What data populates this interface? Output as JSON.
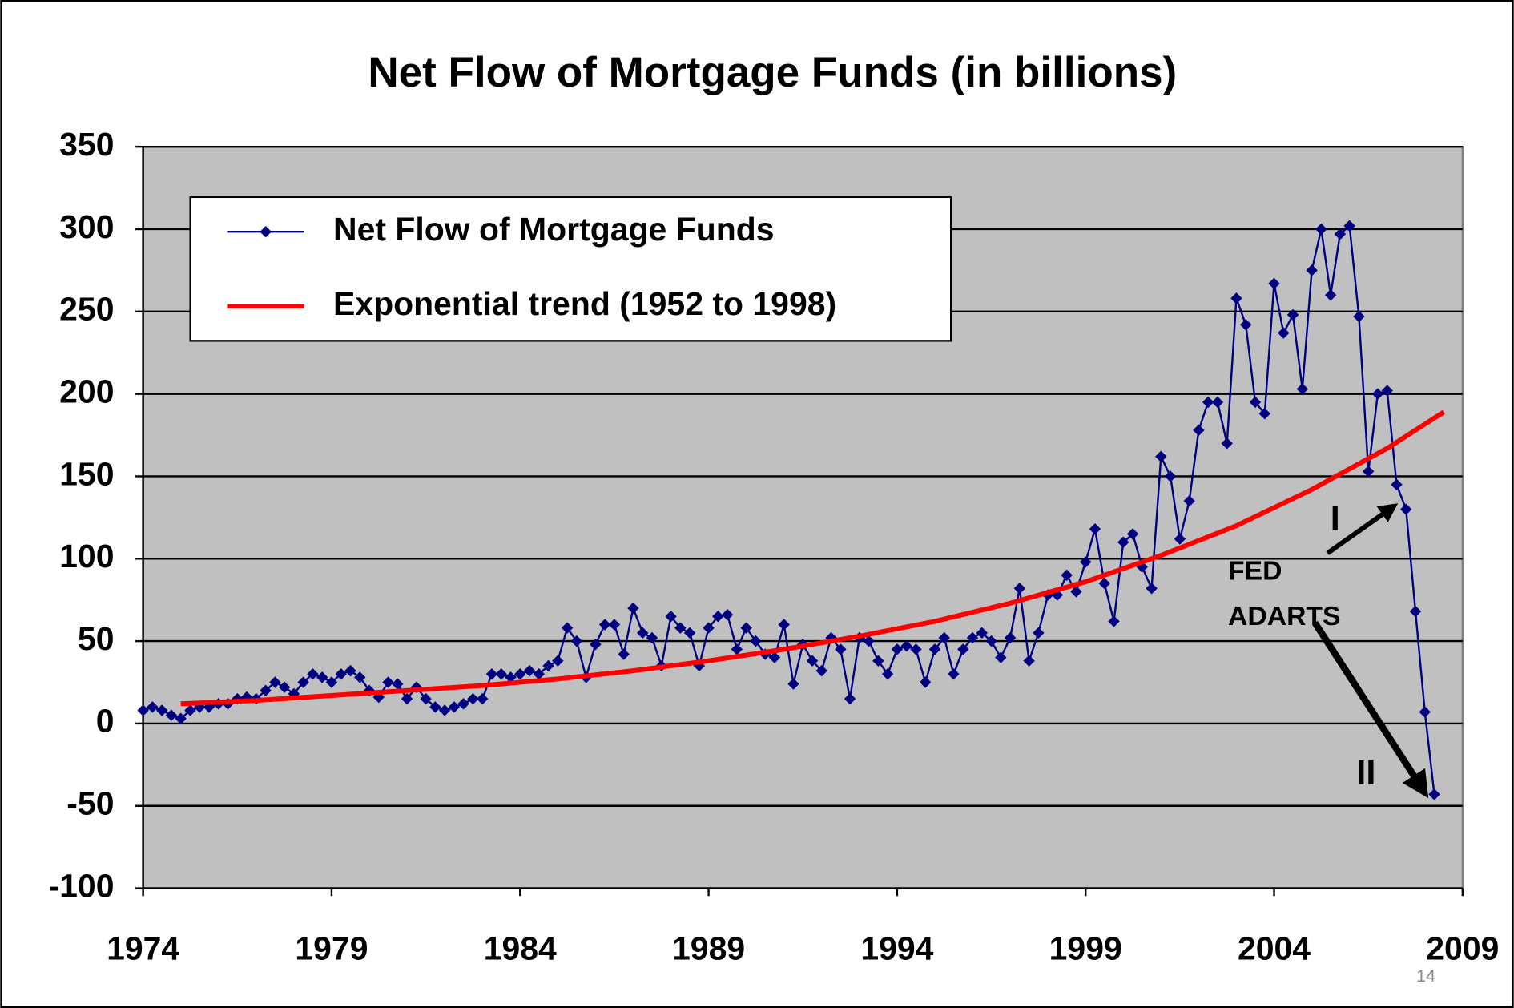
{
  "chart_data": {
    "type": "line",
    "title": "Net Flow of Mortgage Funds (in billions)",
    "xlim": [
      1974,
      2009
    ],
    "xticks": [
      1974,
      1979,
      1984,
      1989,
      1994,
      1999,
      2004,
      2009
    ],
    "ylim": [
      -100,
      350
    ],
    "yticks": [
      -100,
      -50,
      0,
      50,
      100,
      150,
      200,
      250,
      300,
      350
    ],
    "grid": true,
    "legend": "upper left",
    "series": [
      {
        "name": "Net Flow of Mortgage Funds",
        "color": "#000080",
        "marker": "diamond",
        "x": [
          1974,
          1974.25,
          1974.5,
          1974.75,
          1975,
          1975.25,
          1975.5,
          1975.75,
          1976,
          1976.25,
          1976.5,
          1976.75,
          1977,
          1977.25,
          1977.5,
          1977.75,
          1978,
          1978.25,
          1978.5,
          1978.75,
          1979,
          1979.25,
          1979.5,
          1979.75,
          1980,
          1980.25,
          1980.5,
          1980.75,
          1981,
          1981.25,
          1981.5,
          1981.75,
          1982,
          1982.25,
          1982.5,
          1982.75,
          1983,
          1983.25,
          1983.5,
          1983.75,
          1984,
          1984.25,
          1984.5,
          1984.75,
          1985,
          1985.25,
          1985.5,
          1985.75,
          1986,
          1986.25,
          1986.5,
          1986.75,
          1987,
          1987.25,
          1987.5,
          1987.75,
          1988,
          1988.25,
          1988.5,
          1988.75,
          1989,
          1989.25,
          1989.5,
          1989.75,
          1990,
          1990.25,
          1990.5,
          1990.75,
          1991,
          1991.25,
          1991.5,
          1991.75,
          1992,
          1992.25,
          1992.5,
          1992.75,
          1993,
          1993.25,
          1993.5,
          1993.75,
          1994,
          1994.25,
          1994.5,
          1994.75,
          1995,
          1995.25,
          1995.5,
          1995.75,
          1996,
          1996.25,
          1996.5,
          1996.75,
          1997,
          1997.25,
          1997.5,
          1997.75,
          1998,
          1998.25,
          1998.5,
          1998.75,
          1999,
          1999.25,
          1999.5,
          1999.75,
          2000,
          2000.25,
          2000.5,
          2000.75,
          2001,
          2001.25,
          2001.5,
          2001.75,
          2002,
          2002.25,
          2002.5,
          2002.75,
          2003,
          2003.25,
          2003.5,
          2003.75,
          2004,
          2004.25,
          2004.5,
          2004.75,
          2005,
          2005.25,
          2005.5,
          2005.75,
          2006,
          2006.25,
          2006.5,
          2006.75,
          2007,
          2007.25,
          2007.5,
          2007.75,
          2008,
          2008.25
        ],
        "values": [
          8,
          10,
          8,
          5,
          3,
          8,
          10,
          10,
          12,
          12,
          15,
          16,
          15,
          20,
          25,
          22,
          18,
          25,
          30,
          28,
          25,
          30,
          32,
          28,
          20,
          16,
          25,
          24,
          15,
          22,
          15,
          10,
          8,
          10,
          12,
          15,
          15,
          30,
          30,
          28,
          30,
          32,
          30,
          35,
          38,
          58,
          50,
          28,
          48,
          60,
          60,
          42,
          70,
          55,
          52,
          35,
          65,
          58,
          55,
          35,
          58,
          65,
          66,
          45,
          58,
          50,
          42,
          40,
          60,
          24,
          48,
          38,
          32,
          52,
          45,
          15,
          52,
          50,
          38,
          30,
          45,
          47,
          45,
          25,
          45,
          52,
          30,
          45,
          52,
          55,
          50,
          40,
          52,
          82,
          38,
          55,
          78,
          78,
          90,
          80,
          98,
          118,
          85,
          62,
          110,
          115,
          95,
          82,
          162,
          150,
          112,
          135,
          178,
          195,
          195,
          170,
          258,
          242,
          195,
          188,
          267,
          237,
          248,
          203,
          275,
          300,
          260,
          297,
          302,
          247,
          153,
          200,
          202,
          145,
          130,
          68,
          7,
          -43
        ]
      },
      {
        "name": "Exponential trend (1952 to 1998)",
        "color": "#ff0000",
        "x": [
          1975,
          1977,
          1979,
          1981,
          1983,
          1985,
          1987,
          1989,
          1991,
          1993,
          1995,
          1997,
          1999,
          2001,
          2003,
          2005,
          2007,
          2008.5
        ],
        "values": [
          12,
          14,
          17,
          20,
          23,
          27,
          32,
          38,
          45,
          53,
          62,
          73,
          86,
          102,
          120,
          142,
          167,
          189
        ]
      }
    ],
    "annotations": [
      "I",
      "FED",
      "ADARTS",
      "II"
    ],
    "page_number": "14"
  }
}
